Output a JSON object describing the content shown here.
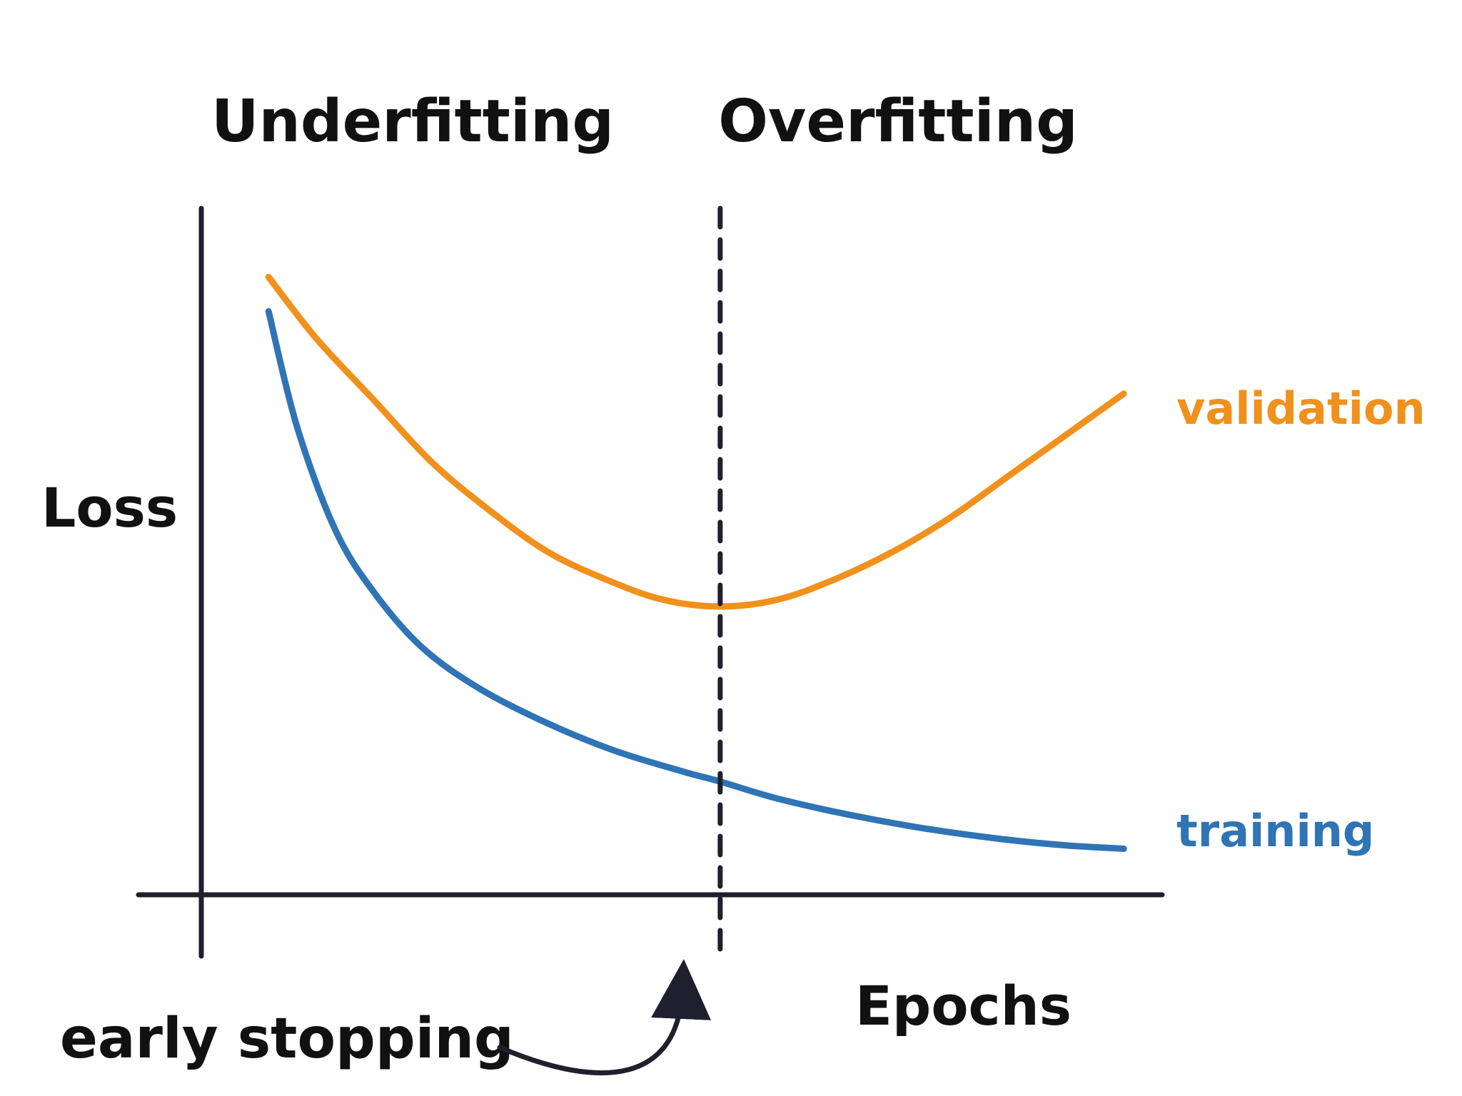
{
  "chart_data": {
    "type": "line",
    "title": "",
    "xlabel": "Epochs",
    "ylabel": "Loss",
    "xlim": [
      0,
      10
    ],
    "ylim": [
      0,
      10
    ],
    "grid": false,
    "regions": [
      {
        "name": "Underfitting"
      },
      {
        "name": "Overfitting"
      }
    ],
    "marker": {
      "label": "early stopping",
      "x": 5.4,
      "style": "dashed"
    },
    "series": [
      {
        "name": "validation",
        "color": "#f0911d",
        "x": [
          0.7,
          1.2,
          1.8,
          2.4,
          3.0,
          3.6,
          4.2,
          4.8,
          5.4,
          6.0,
          6.6,
          7.2,
          7.8,
          8.4,
          9.0,
          9.6
        ],
        "y": [
          9.0,
          8.1,
          7.2,
          6.3,
          5.6,
          5.0,
          4.6,
          4.3,
          4.2,
          4.3,
          4.6,
          5.0,
          5.5,
          6.1,
          6.7,
          7.3
        ]
      },
      {
        "name": "training",
        "color": "#2f74b5",
        "x": [
          0.7,
          1.0,
          1.4,
          1.8,
          2.3,
          2.9,
          3.6,
          4.3,
          5.0,
          5.4,
          6.0,
          6.8,
          7.6,
          8.4,
          9.0,
          9.6
        ],
        "y": [
          8.5,
          6.8,
          5.3,
          4.4,
          3.6,
          3.0,
          2.5,
          2.1,
          1.8,
          1.65,
          1.4,
          1.15,
          0.95,
          0.8,
          0.72,
          0.67
        ]
      }
    ]
  }
}
